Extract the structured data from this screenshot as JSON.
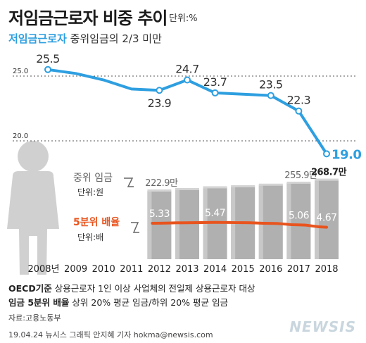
{
  "header": {
    "title": "저임금근로자 비중 추이",
    "unit": "단위:%",
    "subtitle_accent": "저임금근로자",
    "subtitle_rest": "중위임금의 2/3 미만"
  },
  "chart_data": [
    {
      "type": "line",
      "title": "저임금근로자 비중 추이",
      "unit": "%",
      "x": [
        "2008년",
        "2009",
        "2010",
        "2011",
        "2012",
        "2013",
        "2014",
        "2015",
        "2016",
        "2017",
        "2018"
      ],
      "series": [
        {
          "name": "저임금근로자",
          "values": [
            25.5,
            25.2,
            24.7,
            24.0,
            23.9,
            24.7,
            23.7,
            23.6,
            23.5,
            22.3,
            19.0
          ],
          "labels": [
            "25.5",
            "",
            "",
            "",
            "23.9",
            "24.7",
            "23.7",
            "",
            "23.5",
            "22.3",
            "19.0"
          ],
          "color": "#2e9fe0"
        }
      ],
      "ref_lines": [
        25.0,
        20.0
      ],
      "ref_line_labels": [
        "25.0",
        "20.0"
      ]
    },
    {
      "type": "bar",
      "title": "중위 임금",
      "unit_label": "단위:원",
      "categories": [
        "2008년",
        "2009",
        "2010",
        "2011",
        "2012",
        "2013",
        "2014",
        "2015",
        "2016",
        "2017",
        "2018"
      ],
      "values": [
        null,
        null,
        null,
        null,
        222.9,
        229.0,
        236.5,
        241.0,
        247.5,
        255.9,
        268.7
      ],
      "labels": [
        "",
        "",
        "",
        "",
        "222.9만",
        "",
        "",
        "",
        "",
        "255.9만",
        "268.7만"
      ],
      "color": "#a8a8a8"
    },
    {
      "type": "line",
      "title": "5분위 배율",
      "unit_label": "단위:배",
      "x": [
        "2012",
        "2013",
        "2014",
        "2015",
        "2016",
        "2017",
        "2018"
      ],
      "series": [
        {
          "name": "5분위 배율",
          "values": [
            5.33,
            5.42,
            5.47,
            5.44,
            5.32,
            5.06,
            4.67
          ],
          "labels": [
            "5.33",
            "",
            "5.47",
            "",
            "",
            "5.06",
            "4.67"
          ],
          "color": "#e8541e"
        }
      ]
    }
  ],
  "axis": {
    "years": [
      "2008년",
      "2009",
      "2010",
      "2011",
      "2012",
      "2013",
      "2014",
      "2015",
      "2016",
      "2017",
      "2018"
    ]
  },
  "legend": {
    "wage_label": "중위 임금",
    "wage_unit": "단위:원",
    "ratio_label": "5분위 배율",
    "ratio_unit": "단위:배"
  },
  "footnotes": {
    "line1_bold": "OECD기준",
    "line1_rest": "상용근로자 1인 이상 사업체의 전일제 상용근로자 대상",
    "line2_bold": "임금 5분위 배율",
    "line2_rest": "상위 20% 평균 임금/하위 20% 평균 임금"
  },
  "source": "자료:고용노동부",
  "credit": "19.04.24 뉴시스 그래픽 안지혜 기자 hokma@newsis.com",
  "logo": "NEWSIS",
  "colors": {
    "accent": "#2e9fe0",
    "ratio": "#e8541e",
    "bar": "#a8a8a8"
  }
}
